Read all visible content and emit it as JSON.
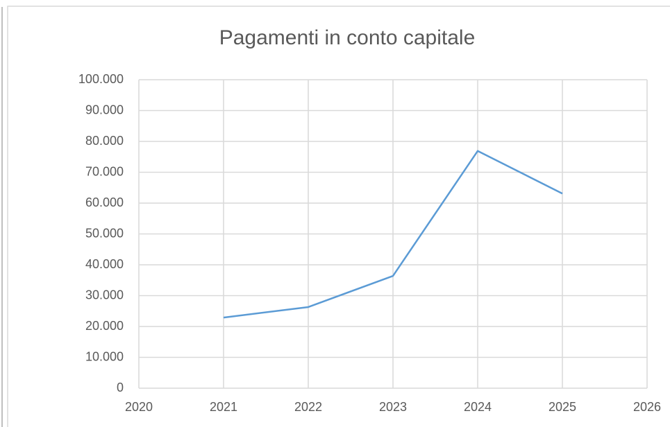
{
  "chart_data": {
    "type": "line",
    "title": "Pagamenti in conto capitale",
    "x": [
      2021,
      2022,
      2023,
      2024,
      2025
    ],
    "series": [
      {
        "name": "Pagamenti",
        "color": "#5b9bd5",
        "values": [
          22900,
          26300,
          36400,
          76900,
          63100
        ]
      }
    ],
    "xlim": [
      2020,
      2026
    ],
    "xticks": [
      2020,
      2021,
      2022,
      2023,
      2024,
      2025,
      2026
    ],
    "ylim": [
      0,
      100000
    ],
    "yticks": [
      0,
      {
        "value": 10000,
        "label": "10.000"
      },
      {
        "value": 20000,
        "label": "20.000"
      },
      {
        "value": 30000,
        "label": "30.000"
      },
      {
        "value": 40000,
        "label": "40.000"
      },
      {
        "value": 50000,
        "label": "50.000"
      },
      {
        "value": 60000,
        "label": "60.000"
      },
      {
        "value": 70000,
        "label": "70.000"
      },
      {
        "value": 80000,
        "label": "80.000"
      },
      {
        "value": 90000,
        "label": "90.000"
      },
      {
        "value": 100000,
        "label": "100.000"
      }
    ],
    "grid": true
  }
}
